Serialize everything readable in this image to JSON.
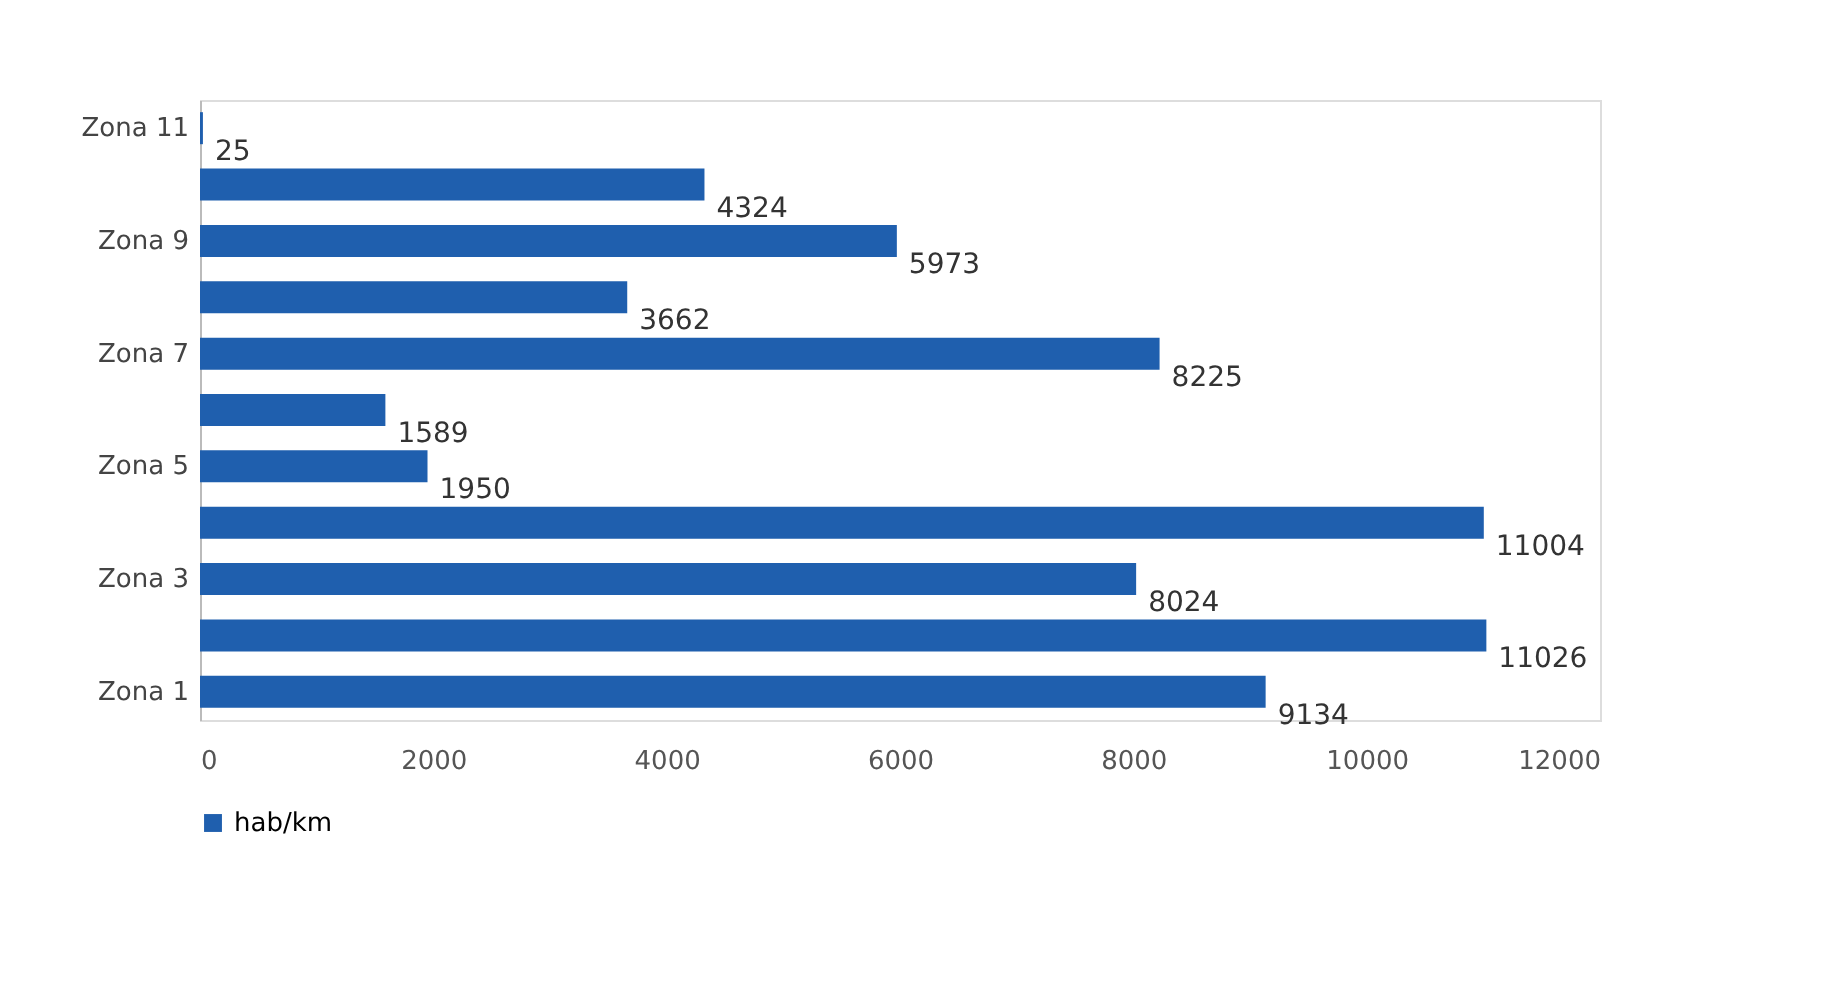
{
  "chart_data": {
    "type": "bar",
    "orientation": "horizontal",
    "categories": [
      "Zona 11",
      null,
      "Zona 9",
      null,
      "Zona 7",
      null,
      "Zona 5",
      null,
      "Zona 3",
      null,
      "Zona 1"
    ],
    "series": [
      {
        "name": "hab/km",
        "color": "#1f5fae",
        "values": [
          25,
          4324,
          5973,
          3662,
          8225,
          1589,
          1950,
          11004,
          8024,
          11026,
          9134
        ]
      }
    ],
    "xlim": [
      0,
      12000
    ],
    "xticks": [
      0,
      2000,
      4000,
      6000,
      8000,
      10000,
      12000
    ],
    "data_labels": true,
    "grid": false,
    "legend": "bottom"
  }
}
